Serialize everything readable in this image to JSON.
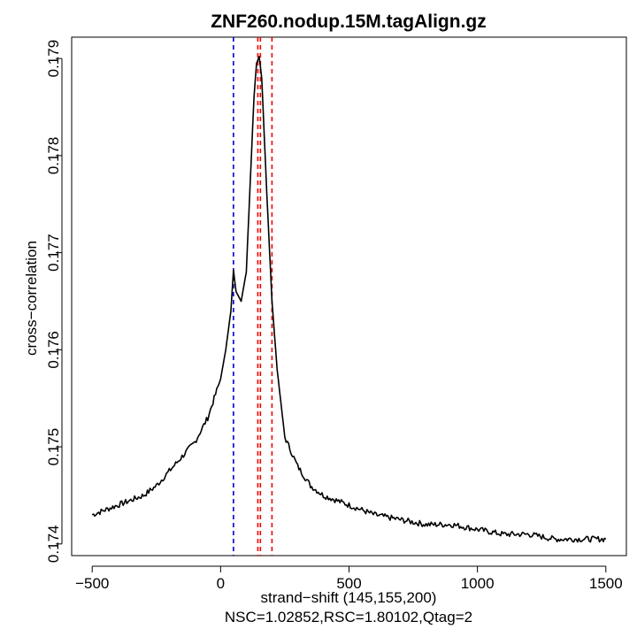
{
  "chart_data": {
    "type": "line",
    "title": "ZNF260.nodup.15M.tagAlign.gz",
    "xlabel": "strand−shift (145,155,200)",
    "subtitle": "NSC=1.02852,RSC=1.80102,Qtag=2",
    "ylabel": "cross−correlation",
    "xlim": [
      -580,
      1580
    ],
    "ylim": [
      0.17388,
      0.17922
    ],
    "x_ticks": [
      -500,
      0,
      500,
      1000,
      1500
    ],
    "x_tick_labels": [
      "−500",
      "0",
      "500",
      "1000",
      "1500"
    ],
    "y_ticks": [
      0.174,
      0.175,
      0.176,
      0.177,
      0.178,
      0.179
    ],
    "y_tick_labels": [
      "0.174",
      "0.175",
      "0.176",
      "0.177",
      "0.178",
      "0.179"
    ],
    "vlines": [
      {
        "x": 50,
        "color": "#0000cc"
      },
      {
        "x": 145,
        "color": "#ee0000"
      },
      {
        "x": 155,
        "color": "#ee0000"
      },
      {
        "x": 200,
        "color": "#ee0000"
      }
    ],
    "series": [
      {
        "color": "#000000",
        "x": [
          -500,
          -450,
          -400,
          -350,
          -300,
          -250,
          -200,
          -150,
          -100,
          -50,
          0,
          20,
          40,
          50,
          60,
          80,
          100,
          120,
          130,
          140,
          150,
          160,
          170,
          180,
          200,
          220,
          250,
          300,
          350,
          400,
          450,
          500,
          600,
          700,
          800,
          900,
          1000,
          1100,
          1200,
          1300,
          1400,
          1500
        ],
        "y": [
          0.1743,
          0.17435,
          0.1744,
          0.17445,
          0.1745,
          0.1746,
          0.17475,
          0.1749,
          0.17505,
          0.1753,
          0.1757,
          0.176,
          0.1764,
          0.17682,
          0.1766,
          0.1765,
          0.1768,
          0.178,
          0.1786,
          0.17895,
          0.17902,
          0.1788,
          0.1782,
          0.1776,
          0.1765,
          0.1758,
          0.1751,
          0.1748,
          0.1746,
          0.1745,
          0.17445,
          0.1744,
          0.1743,
          0.17425,
          0.1742,
          0.1742,
          0.17415,
          0.1741,
          0.1741,
          0.17405,
          0.17405,
          0.17405
        ]
      }
    ]
  }
}
